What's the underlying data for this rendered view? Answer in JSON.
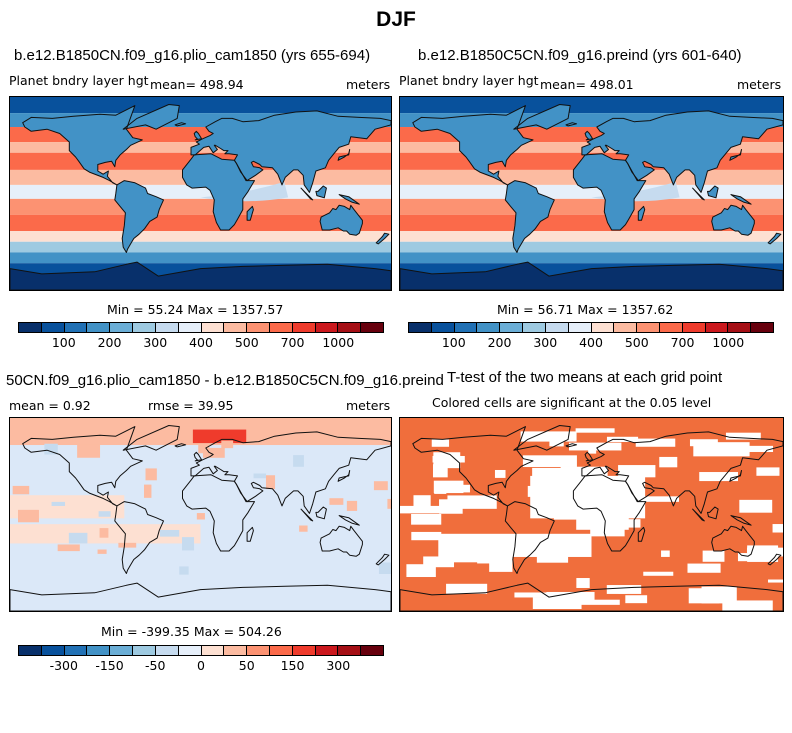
{
  "title": "DJF",
  "colors": {
    "scale": [
      "#08306b",
      "#08519c",
      "#2171b5",
      "#4292c6",
      "#6baed6",
      "#9ecae1",
      "#c6dbef",
      "#e6effa",
      "#fde0d2",
      "#fcbba1",
      "#fc9272",
      "#fb6a4a",
      "#ef3b2c",
      "#cb181d",
      "#a50f15",
      "#67000d"
    ],
    "ocean_abs": "#f07a50",
    "ocean_diff": "#dbe8f8",
    "signif": "#f06e3c",
    "coast": "#111111"
  },
  "panels": [
    {
      "title": "b.e12.B1850CN.f09_g16.plio_cam1850 (yrs 655-694)",
      "left_label": "Planet bndry layer hgt",
      "center_label": "mean= 498.94",
      "right_label": "meters",
      "stats": "Min =  55.24 Max = 1357.57",
      "ticks": [
        "100",
        "200",
        "300",
        "400",
        "500",
        "700",
        "1000"
      ]
    },
    {
      "title": "b.e12.B1850C5CN.f09_g16.preind (yrs 601-640)",
      "left_label": "Planet bndry layer hgt",
      "center_label": "mean= 498.01",
      "right_label": "meters",
      "stats": "Min =  56.71 Max = 1357.62",
      "ticks": [
        "100",
        "200",
        "300",
        "400",
        "500",
        "700",
        "1000"
      ]
    },
    {
      "title": "50CN.f09_g16.plio_cam1850 - b.e12.B1850C5CN.f09_g16.preind",
      "left_label": "mean =   0.92",
      "center_label": "rmse =  39.95",
      "right_label": "meters",
      "stats": "Min = -399.35 Max = 504.26",
      "ticks": [
        "-300",
        "-150",
        "-50",
        "0",
        "50",
        "150",
        "300"
      ]
    },
    {
      "title": "T-test of the two means at each grid point",
      "subtitle": "Colored cells are significant at the 0.05 level"
    }
  ]
}
